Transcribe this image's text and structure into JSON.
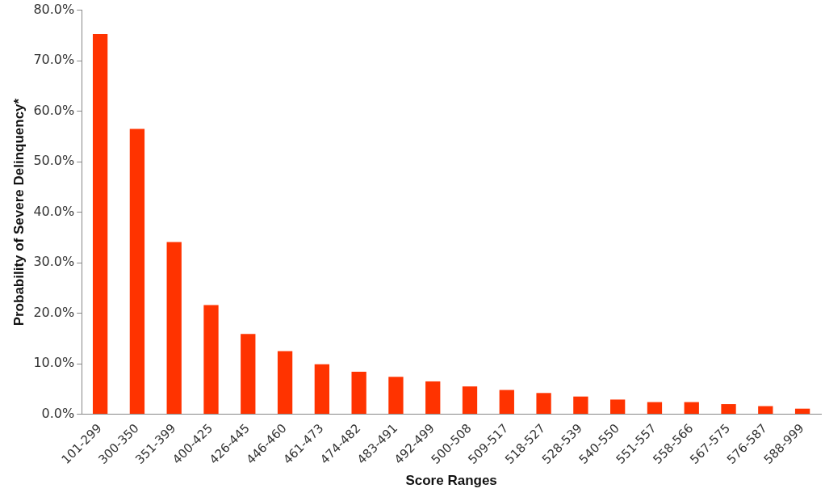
{
  "chart_data": {
    "type": "bar",
    "xlabel": "Score Ranges",
    "ylabel": "Probability of Severe Delinquency*",
    "categories": [
      "101-299",
      "300-350",
      "351-399",
      "400-425",
      "426-445",
      "446-460",
      "461-473",
      "474-482",
      "483-491",
      "492-499",
      "500-508",
      "509-517",
      "518-527",
      "528-539",
      "540-550",
      "551-557",
      "558-566",
      "567-575",
      "576-587",
      "588-999"
    ],
    "values": [
      75.3,
      56.5,
      34.1,
      21.6,
      15.9,
      12.5,
      9.9,
      8.4,
      7.4,
      6.5,
      5.5,
      4.8,
      4.2,
      3.5,
      2.9,
      2.4,
      2.4,
      2.0,
      1.6,
      1.1
    ],
    "color": "#ff3300",
    "ylim": [
      0,
      80
    ],
    "yticks": [
      {
        "value": 0,
        "label": "0.0%"
      },
      {
        "value": 10,
        "label": "10.0%"
      },
      {
        "value": 20,
        "label": "20.0%"
      },
      {
        "value": 30,
        "label": "30.0%"
      },
      {
        "value": 40,
        "label": "40.0%"
      },
      {
        "value": 50,
        "label": "50.0%"
      },
      {
        "value": 60,
        "label": "60.0%"
      },
      {
        "value": 70,
        "label": "70.0%"
      },
      {
        "value": 80,
        "label": "80.0%"
      }
    ],
    "grid": false,
    "legend": false
  }
}
